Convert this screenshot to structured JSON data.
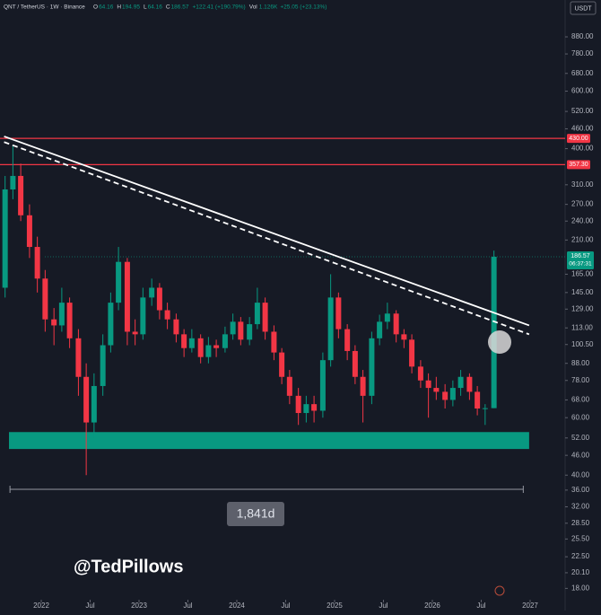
{
  "chart_data": {
    "type": "candlestick",
    "header": {
      "symbol": "QNT / TetherUS · 1W · Binance",
      "fields": [
        {
          "label": "O",
          "value": "64.16"
        },
        {
          "label": "H",
          "value": "194.95"
        },
        {
          "label": "L",
          "value": "64.16"
        },
        {
          "label": "C",
          "value": "186.57"
        },
        {
          "label": "",
          "value": "+122.41 (+190.79%)"
        }
      ],
      "volume": {
        "label": "Vol",
        "value": "1.126K",
        "change": "+25.05 (+23.13%)"
      }
    },
    "currency": "USDT",
    "log_scale": true,
    "up_color": "#089981",
    "down_color": "#f23645",
    "x": [
      2021.63,
      2021.71,
      2021.79,
      2021.88,
      2021.96,
      2022.04,
      2022.13,
      2022.21,
      2022.29,
      2022.38,
      2022.46,
      2022.54,
      2022.63,
      2022.71,
      2022.79,
      2022.88,
      2022.96,
      2023.04,
      2023.13,
      2023.21,
      2023.29,
      2023.38,
      2023.46,
      2023.54,
      2023.63,
      2023.71,
      2023.79,
      2023.88,
      2023.96,
      2024.04,
      2024.13,
      2024.21,
      2024.29,
      2024.38,
      2024.46,
      2024.54,
      2024.63,
      2024.71,
      2024.79,
      2024.88,
      2024.96,
      2025.04,
      2025.13,
      2025.21,
      2025.29,
      2025.38,
      2025.46,
      2025.54,
      2025.63,
      2025.71,
      2025.79,
      2025.88,
      2025.96,
      2026.04,
      2026.13,
      2026.21,
      2026.29,
      2026.38,
      2026.46,
      2026.54,
      2026.63
    ],
    "open": [
      150,
      300,
      330,
      250,
      200,
      160,
      120,
      115,
      135,
      105,
      80,
      58,
      75,
      100,
      135,
      180,
      110,
      108,
      140,
      150,
      128,
      120,
      108,
      98,
      105,
      92,
      100,
      98,
      108,
      118,
      104,
      116,
      135,
      110,
      95,
      80,
      70,
      62,
      66,
      63,
      90,
      140,
      112,
      96,
      80,
      70,
      105,
      118,
      125,
      108,
      104,
      86,
      78,
      74,
      72,
      68,
      74,
      80,
      72,
      64,
      64.16
    ],
    "high": [
      330,
      410,
      360,
      270,
      215,
      170,
      130,
      150,
      140,
      112,
      88,
      82,
      108,
      145,
      200,
      185,
      120,
      150,
      160,
      155,
      135,
      125,
      112,
      112,
      108,
      106,
      104,
      114,
      125,
      122,
      122,
      150,
      140,
      115,
      98,
      84,
      74,
      70,
      70,
      95,
      165,
      145,
      116,
      100,
      84,
      110,
      124,
      135,
      128,
      112,
      108,
      90,
      82,
      80,
      76,
      78,
      84,
      82,
      75,
      66,
      194.95
    ],
    "low": [
      140,
      280,
      240,
      185,
      145,
      110,
      100,
      110,
      98,
      70,
      40,
      52,
      70,
      95,
      128,
      100,
      100,
      104,
      132,
      120,
      112,
      102,
      92,
      95,
      88,
      88,
      92,
      95,
      104,
      100,
      100,
      112,
      104,
      90,
      76,
      66,
      57,
      58,
      58,
      60,
      86,
      105,
      90,
      76,
      58,
      66,
      100,
      112,
      102,
      98,
      82,
      74,
      60,
      68,
      64,
      65,
      70,
      68,
      61,
      57,
      64.16
    ],
    "close": [
      300,
      330,
      250,
      200,
      160,
      120,
      115,
      135,
      105,
      80,
      58,
      75,
      100,
      135,
      180,
      110,
      108,
      140,
      150,
      128,
      120,
      108,
      98,
      105,
      92,
      100,
      98,
      108,
      118,
      104,
      116,
      135,
      110,
      95,
      80,
      70,
      62,
      66,
      63,
      90,
      140,
      112,
      96,
      80,
      70,
      105,
      118,
      125,
      108,
      104,
      86,
      78,
      74,
      72,
      68,
      74,
      80,
      72,
      64,
      64.16,
      186.57
    ],
    "xlim": [
      2021.578,
      2027.358
    ],
    "ylim": [
      15.4,
      1141
    ],
    "xticks": [
      2022,
      {
        "value": 2022.5,
        "label": "Jul"
      },
      2023,
      {
        "value": 2023.5,
        "label": "Jul"
      },
      2024,
      {
        "value": 2024.5,
        "label": "Jul"
      },
      2025,
      {
        "value": 2025.5,
        "label": "Jul"
      },
      2026,
      {
        "value": 2026.5,
        "label": "Jul"
      },
      2027
    ],
    "yticks": [
      {
        "value": 880,
        "label": "880.00"
      },
      {
        "value": 780,
        "label": "780.00"
      },
      {
        "value": 680,
        "label": "680.00"
      },
      {
        "value": 600,
        "label": "600.00"
      },
      {
        "value": 520,
        "label": "520.00"
      },
      {
        "value": 460,
        "label": "460.00"
      },
      {
        "value": 400,
        "label": "400.00"
      },
      {
        "value": 310,
        "label": "310.00"
      },
      {
        "value": 270,
        "label": "270.00"
      },
      {
        "value": 240,
        "label": "240.00"
      },
      {
        "value": 210,
        "label": "210.00"
      },
      {
        "value": 165,
        "label": "165.00"
      },
      {
        "value": 145,
        "label": "145.00"
      },
      {
        "value": 129,
        "label": "129.00"
      },
      {
        "value": 113,
        "label": "113.00"
      },
      {
        "value": 100.5,
        "label": "100.50"
      },
      {
        "value": 88,
        "label": "88.00"
      },
      {
        "value": 78,
        "label": "78.00"
      },
      {
        "value": 68,
        "label": "68.00"
      },
      {
        "value": 60,
        "label": "60.00"
      },
      {
        "value": 52,
        "label": "52.00"
      },
      {
        "value": 46,
        "label": "46.00"
      },
      {
        "value": 40,
        "label": "40.00"
      },
      {
        "value": 36,
        "label": "36.00"
      },
      {
        "value": 32,
        "label": "32.00"
      },
      {
        "value": 28.5,
        "label": "28.50"
      },
      {
        "value": 25.5,
        "label": "25.50"
      },
      {
        "value": 22.5,
        "label": "22.50"
      },
      {
        "value": 20.1,
        "label": "20.10"
      },
      {
        "value": 18,
        "label": "18.00"
      }
    ],
    "levels": [
      {
        "value": 430,
        "label": "430.00",
        "color": "#f23645"
      },
      {
        "value": 357.3,
        "label": "357.30",
        "color": "#f23645"
      }
    ],
    "last_price": {
      "value": 186.57,
      "label": "186.57",
      "countdown": "06:37:31",
      "color": "#089981"
    },
    "trendlines": [
      {
        "x": [
          2021.62,
          2026.99
        ],
        "y": [
          436,
          115
        ],
        "style": "solid",
        "color": "#ffffff"
      },
      {
        "x": [
          2021.62,
          2026.99
        ],
        "y": [
          419,
          108
        ],
        "style": "dashed",
        "color": "#ffffff"
      }
    ],
    "support_zone": {
      "x": [
        2021.67,
        2026.99
      ],
      "ylim": [
        48.1,
        54.2
      ],
      "color": "#089981"
    },
    "measure": {
      "x": [
        2021.68,
        2026.93
      ],
      "label": "1,841d"
    },
    "watermark": "@TedPillows"
  }
}
